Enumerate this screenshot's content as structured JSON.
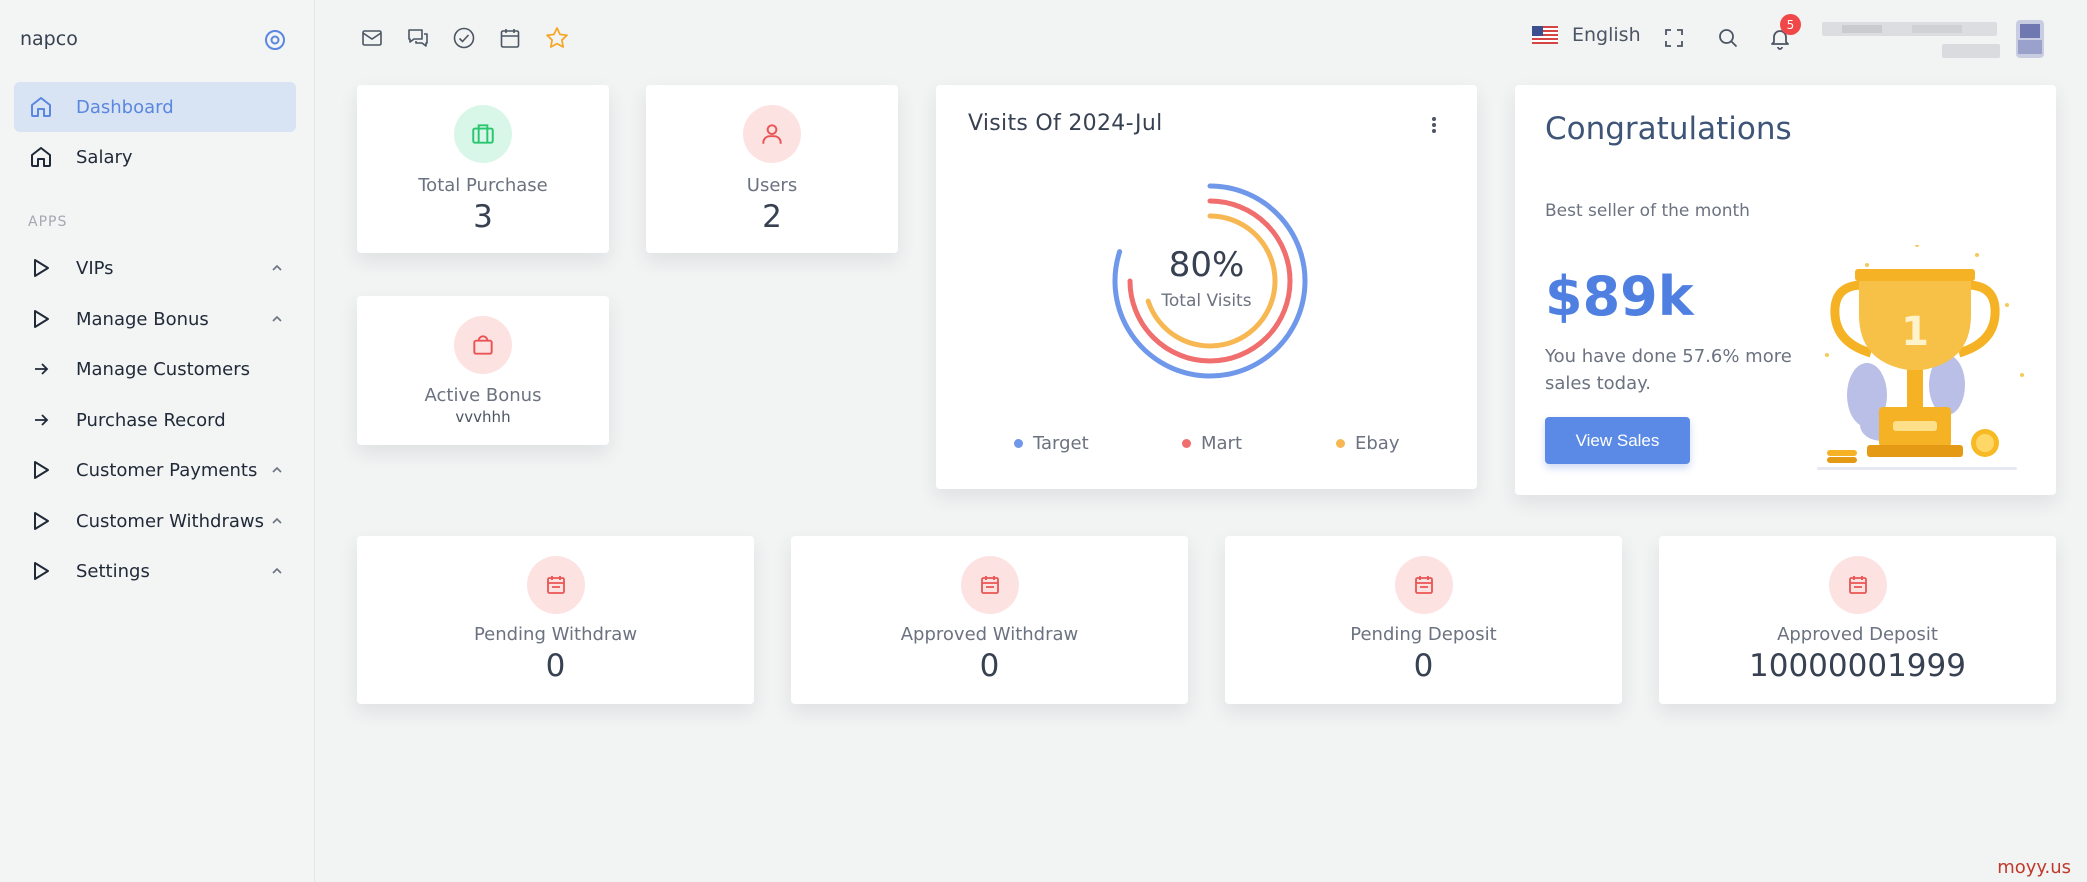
{
  "sidebar": {
    "brand": "napco",
    "items": [
      {
        "label": "Dashboard",
        "icon": "home-icon"
      },
      {
        "label": "Salary",
        "icon": "home-icon"
      }
    ],
    "section_title": "APPS",
    "apps": [
      {
        "label": "VIPs",
        "icon": "triangle-play-icon",
        "expandable": true
      },
      {
        "label": "Manage Bonus",
        "icon": "triangle-play-icon",
        "expandable": true
      },
      {
        "label": "Manage Customers",
        "icon": "arrow-right-icon",
        "expandable": false
      },
      {
        "label": "Purchase Record",
        "icon": "arrow-right-icon",
        "expandable": false
      },
      {
        "label": "Customer Payments",
        "icon": "triangle-play-icon",
        "expandable": true
      },
      {
        "label": "Customer Withdraws",
        "icon": "triangle-play-icon",
        "expandable": true
      },
      {
        "label": "Settings",
        "icon": "triangle-play-icon",
        "expandable": true
      }
    ]
  },
  "topbar": {
    "language": "English",
    "notifications_count": "5",
    "shortcut_icons": [
      "mail-icon",
      "chat-icon",
      "check-circle-icon",
      "calendar-icon",
      "star-icon"
    ]
  },
  "stats": {
    "total_purchase": {
      "label": "Total Purchase",
      "value": "3"
    },
    "users": {
      "label": "Users",
      "value": "2"
    },
    "active_bonus": {
      "label": "Active Bonus",
      "value": "vvvhhh"
    },
    "pending_withdraw": {
      "label": "Pending Withdraw",
      "value": "0"
    },
    "approved_withdraw": {
      "label": "Approved Withdraw",
      "value": "0"
    },
    "pending_deposit": {
      "label": "Pending Deposit",
      "value": "0"
    },
    "approved_deposit": {
      "label": "Approved Deposit",
      "value": "10000001999"
    }
  },
  "visits": {
    "title": "Visits Of 2024-Jul",
    "center_value": "80%",
    "center_label": "Total Visits"
  },
  "chart_data": {
    "type": "radialBar",
    "title": "Visits Of 2024-Jul",
    "series": [
      {
        "name": "Target",
        "value": 80,
        "color": "#6f98ea"
      },
      {
        "name": "Mart",
        "value": 75,
        "color": "#f06e6e"
      },
      {
        "name": "Ebay",
        "value": 70,
        "color": "#f7b853"
      }
    ],
    "legend_position": "bottom"
  },
  "congrats": {
    "title": "Congratulations",
    "subtitle": "Best seller of the month",
    "amount": "$89k",
    "description": "You have done 57.6% more sales today.",
    "button": "View Sales"
  },
  "watermark": "moyy.us",
  "colors": {
    "accent": "#5b8ae6",
    "active_nav_bg": "#d8e3f4",
    "green_icon_bg": "#d9f7e8",
    "red_icon_bg": "#fde2e2"
  }
}
